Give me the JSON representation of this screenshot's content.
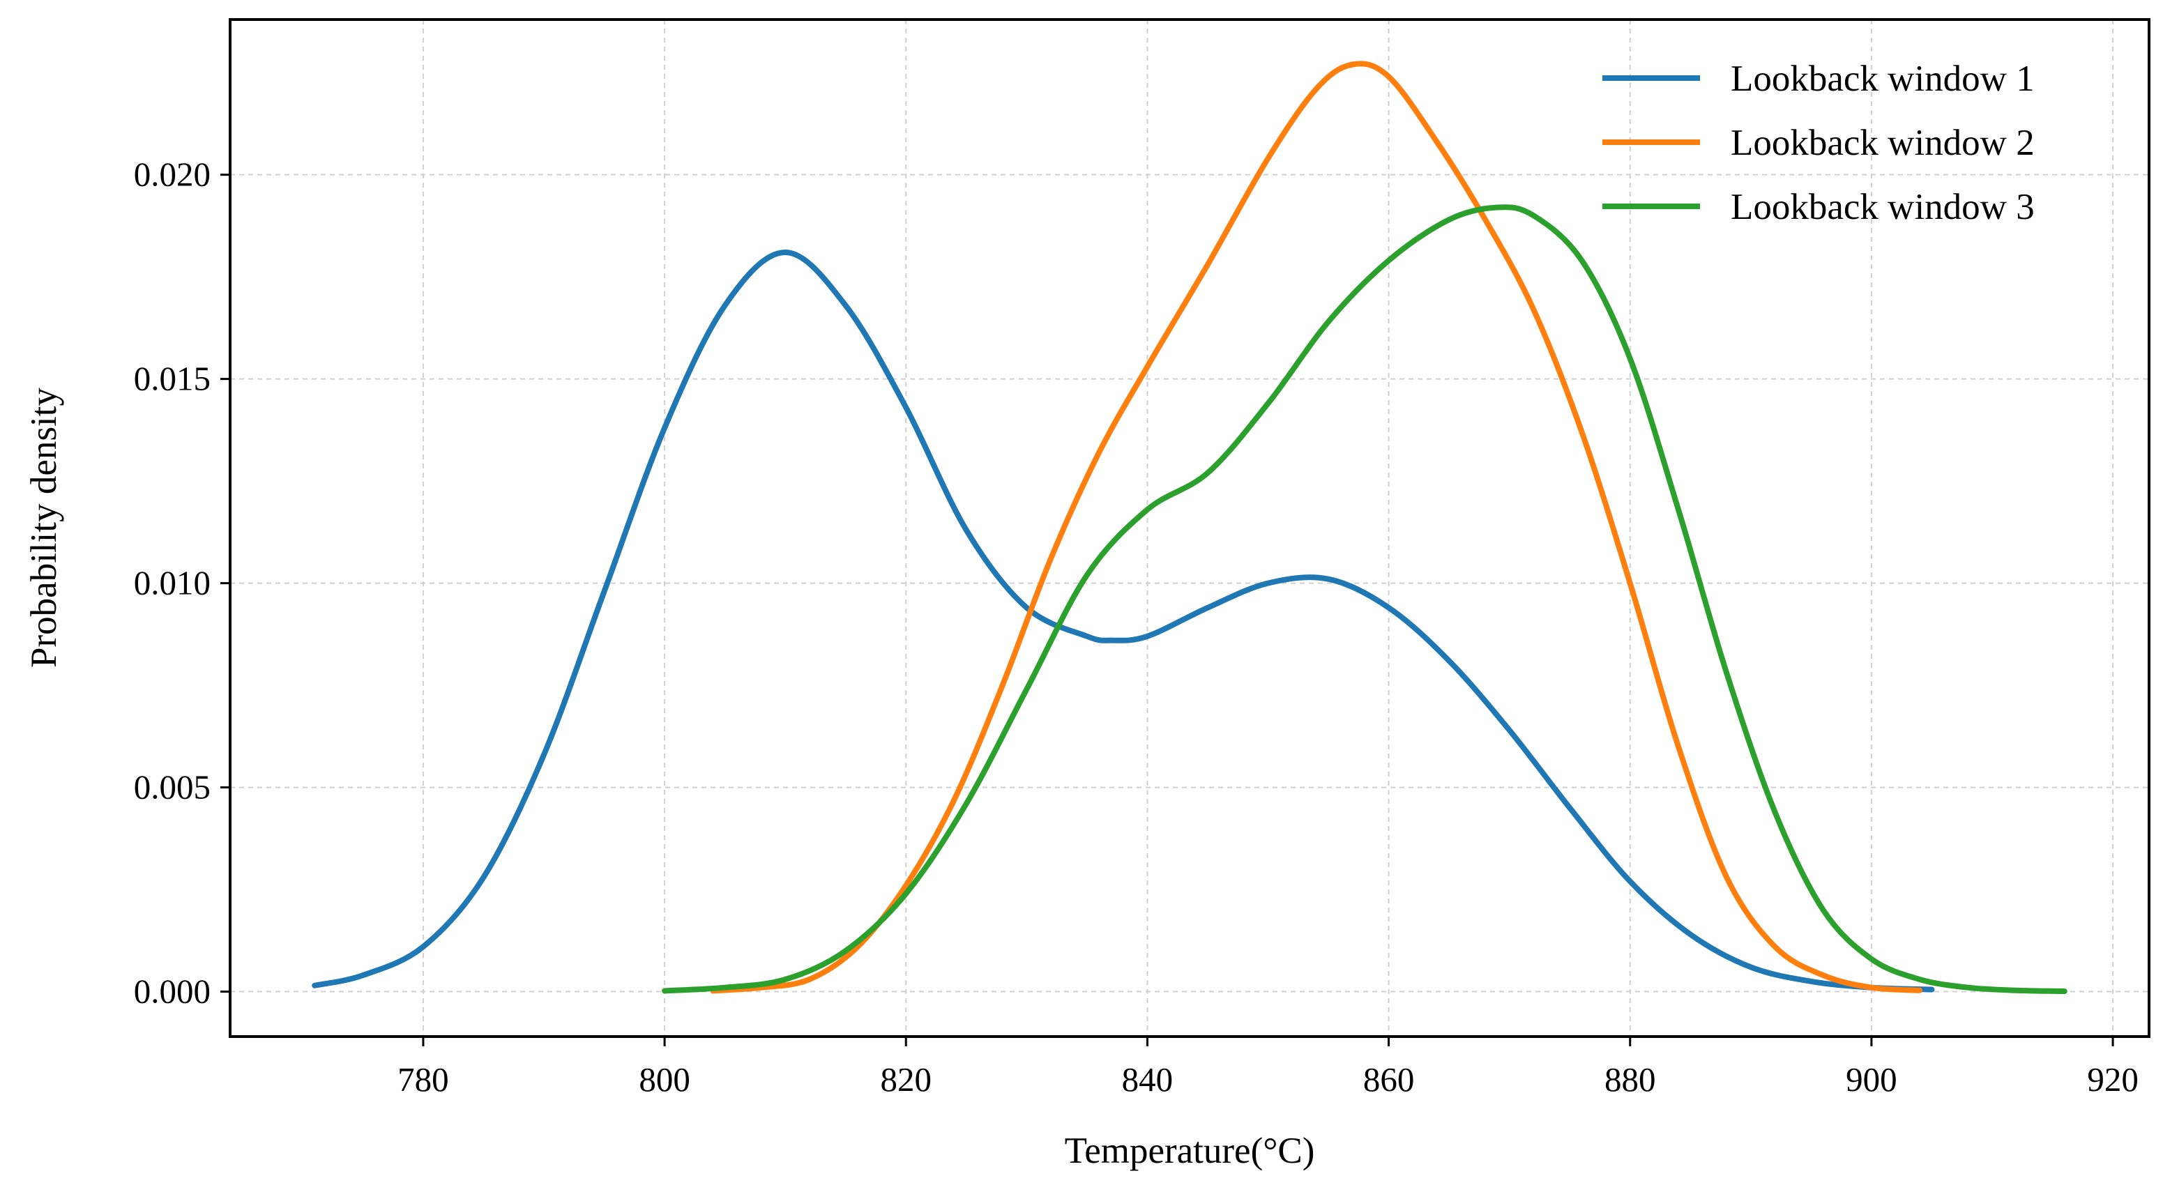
{
  "chart_data": {
    "type": "line",
    "title": "",
    "xlabel": "Temperature(°C)",
    "ylabel": "Probability density",
    "xlim": [
      764,
      923
    ],
    "ylim": [
      -0.0011,
      0.0238
    ],
    "xticks": [
      780,
      800,
      820,
      840,
      860,
      880,
      900,
      920
    ],
    "xtick_labels": [
      "780",
      "800",
      "820",
      "840",
      "860",
      "880",
      "900",
      "920"
    ],
    "yticks": [
      0.0,
      0.005,
      0.01,
      0.015,
      0.02
    ],
    "ytick_labels": [
      "0.000",
      "0.005",
      "0.010",
      "0.015",
      "0.020"
    ],
    "grid": true,
    "legend_position": "top-right",
    "series": [
      {
        "name": "Lookback window 1",
        "color": "#1f77b4",
        "x": [
          771,
          775,
          780,
          785,
          790,
          795,
          800,
          805,
          810,
          815,
          820,
          825,
          830,
          835,
          837,
          840,
          845,
          850,
          855,
          860,
          865,
          870,
          875,
          880,
          885,
          890,
          895,
          900,
          905
        ],
        "y": [
          0.00015,
          0.0004,
          0.0011,
          0.0028,
          0.0058,
          0.0098,
          0.0138,
          0.0168,
          0.0181,
          0.0168,
          0.0143,
          0.0113,
          0.0094,
          0.0087,
          0.0086,
          0.0087,
          0.0094,
          0.01,
          0.0101,
          0.0094,
          0.0081,
          0.0064,
          0.0045,
          0.0027,
          0.0014,
          0.0006,
          0.00025,
          0.0001,
          5e-05
        ]
      },
      {
        "name": "Lookback window 2",
        "color": "#ff7f0e",
        "x": [
          804,
          808,
          812,
          816,
          820,
          824,
          828,
          832,
          836,
          840,
          845,
          850,
          854,
          857,
          860,
          864,
          868,
          872,
          876,
          880,
          884,
          888,
          892,
          896,
          900,
          904
        ],
        "y": [
          2e-05,
          0.0001,
          0.0003,
          0.0011,
          0.0026,
          0.0047,
          0.0075,
          0.0106,
          0.0132,
          0.0153,
          0.0178,
          0.0204,
          0.0221,
          0.0227,
          0.0224,
          0.0208,
          0.0189,
          0.0167,
          0.0137,
          0.01,
          0.006,
          0.0028,
          0.0011,
          0.0004,
          0.0001,
          3e-05
        ]
      },
      {
        "name": "Lookback window 3",
        "color": "#2ca02c",
        "x": [
          800,
          805,
          810,
          815,
          820,
          825,
          830,
          835,
          840,
          845,
          850,
          855,
          860,
          865,
          869,
          872,
          876,
          880,
          884,
          888,
          892,
          896,
          900,
          904,
          908,
          912,
          916
        ],
        "y": [
          2e-05,
          0.0001,
          0.0003,
          0.001,
          0.0024,
          0.0046,
          0.0074,
          0.0102,
          0.0118,
          0.0127,
          0.0144,
          0.0164,
          0.0179,
          0.0189,
          0.0192,
          0.019,
          0.0179,
          0.0155,
          0.0118,
          0.0078,
          0.0044,
          0.002,
          0.0008,
          0.0003,
          0.0001,
          3e-05,
          1e-05
        ]
      }
    ]
  }
}
